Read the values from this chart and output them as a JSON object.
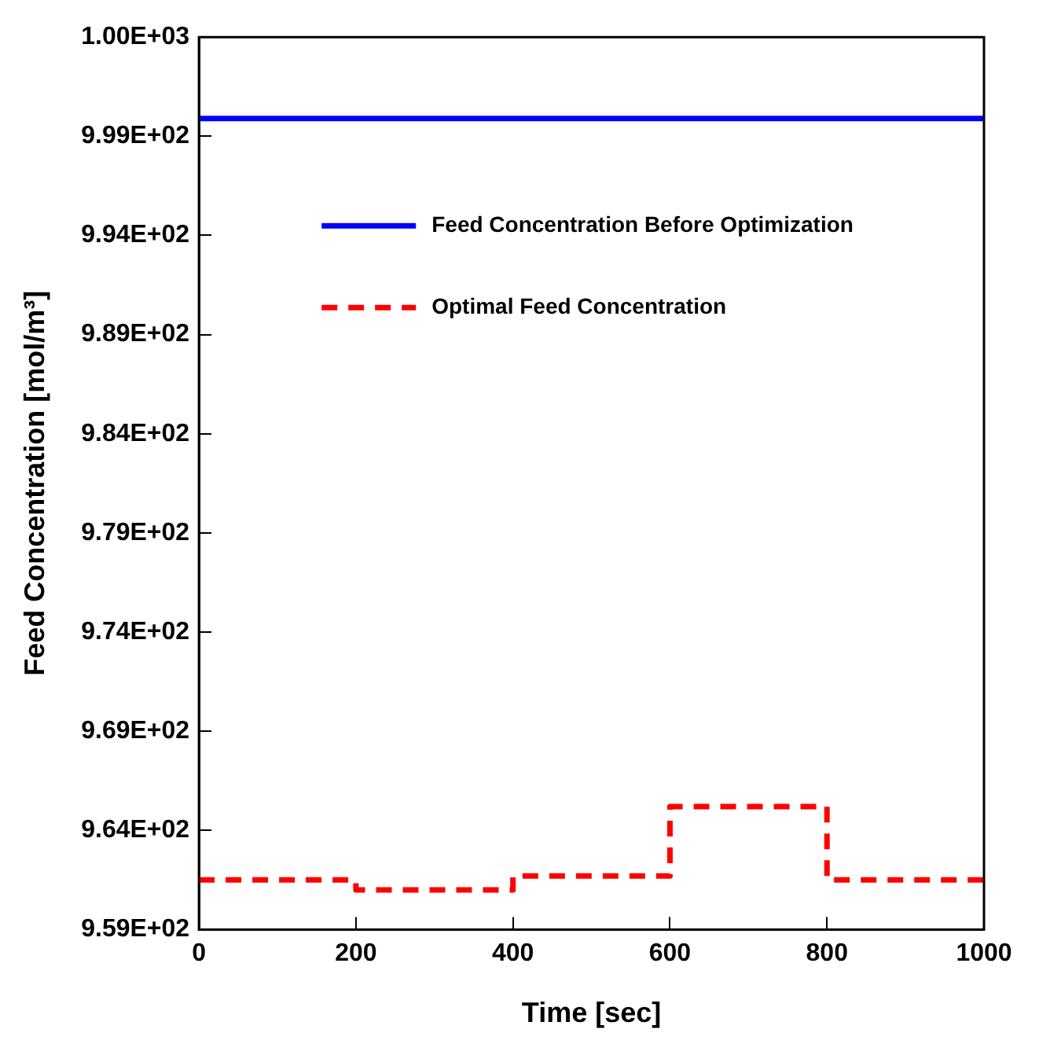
{
  "chart_data": {
    "type": "line",
    "xlabel": "Time [sec]",
    "ylabel": "Feed Concentration [mol/m³]",
    "xlim": [
      0,
      1000
    ],
    "xticks": [
      0,
      200,
      400,
      600,
      800,
      1000
    ],
    "ylim": [
      959,
      1004
    ],
    "yticks": [
      {
        "value": 959,
        "label": "9.59E+02"
      },
      {
        "value": 964,
        "label": "9.64E+02"
      },
      {
        "value": 969,
        "label": "9.69E+02"
      },
      {
        "value": 974,
        "label": "9.74E+02"
      },
      {
        "value": 979,
        "label": "9.79E+02"
      },
      {
        "value": 984,
        "label": "9.84E+02"
      },
      {
        "value": 989,
        "label": "9.89E+02"
      },
      {
        "value": 994,
        "label": "9.94E+02"
      },
      {
        "value": 999,
        "label": "9.99E+02"
      },
      {
        "value": 1004,
        "label": "1.00E+03"
      }
    ],
    "grid": false,
    "legend": "top",
    "marker": "none",
    "series": [
      {
        "name": "Feed Concentration Before Optimization",
        "color": "#0000ff",
        "line_style": "solid",
        "x": [
          0,
          1000
        ],
        "values": [
          999.9,
          999.9
        ]
      },
      {
        "name": "Optimal Feed Concentration",
        "type": "step",
        "color": "#ff0000",
        "line_style": "dashed",
        "x": [
          0,
          200,
          400,
          600,
          800,
          1000
        ],
        "values": [
          961.5,
          961.0,
          961.7,
          965.2,
          961.5,
          961.5
        ]
      }
    ]
  }
}
